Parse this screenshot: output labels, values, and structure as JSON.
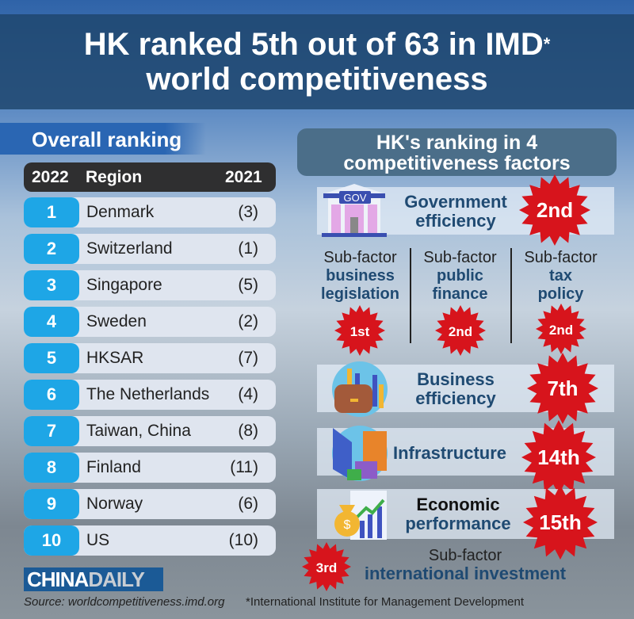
{
  "title": {
    "line1": "HK ranked 5th out of 63 in IMD",
    "asterisk": "*",
    "line2": "world competitiveness"
  },
  "overall": {
    "heading": "Overall ranking",
    "columns": [
      "2022",
      "Region",
      "2021"
    ],
    "rows": [
      {
        "rank": "1",
        "region": "Denmark",
        "prev": "(3)"
      },
      {
        "rank": "2",
        "region": "Switzerland",
        "prev": "(1)"
      },
      {
        "rank": "3",
        "region": "Singapore",
        "prev": "(5)"
      },
      {
        "rank": "4",
        "region": "Sweden",
        "prev": "(2)"
      },
      {
        "rank": "5",
        "region": "HKSAR",
        "prev": "(7)"
      },
      {
        "rank": "6",
        "region": "The Netherlands",
        "prev": "(4)"
      },
      {
        "rank": "7",
        "region": "Taiwan, China",
        "prev": "(8)"
      },
      {
        "rank": "8",
        "region": "Finland",
        "prev": "(11)"
      },
      {
        "rank": "9",
        "region": "Norway",
        "prev": "(6)"
      },
      {
        "rank": "10",
        "region": "US",
        "prev": "(10)"
      }
    ]
  },
  "factors": {
    "heading_line1": "HK's ranking in 4",
    "heading_line2": "competitiveness factors",
    "gov": {
      "line1": "Government",
      "line2": "efficiency",
      "rank": "2nd",
      "icon": "gov-building-icon",
      "icon_label": "GOV"
    },
    "subs": [
      {
        "label": "Sub-factor",
        "name1": "business",
        "name2": "legislation",
        "rank": "1st"
      },
      {
        "label": "Sub-factor",
        "name1": "public",
        "name2": "finance",
        "rank": "2nd"
      },
      {
        "label": "Sub-factor",
        "name1": "tax",
        "name2": "policy",
        "rank": "2nd"
      }
    ],
    "business": {
      "line1": "Business",
      "line2": "efficiency",
      "rank": "7th",
      "icon": "briefcase-chart-icon"
    },
    "infra": {
      "line1": "Infrastructure",
      "rank": "14th",
      "icon": "buildings-icon"
    },
    "econ": {
      "line1": "Economic",
      "line2": "performance",
      "rank": "15th",
      "icon": "money-bag-chart-icon"
    },
    "intl": {
      "label": "Sub-factor",
      "name": "international investment",
      "rank": "3rd"
    }
  },
  "footer": {
    "logo_china": "CHINA",
    "logo_daily": "DAILY",
    "source": "Source: worldcompetitiveness.imd.org",
    "footnote": "*International Institute for Management Development"
  },
  "colors": {
    "title_band": "#1e466e",
    "rank_blue": "#1ea6e6",
    "star_red": "#d7141c",
    "text_navy": "#1f4a72"
  }
}
